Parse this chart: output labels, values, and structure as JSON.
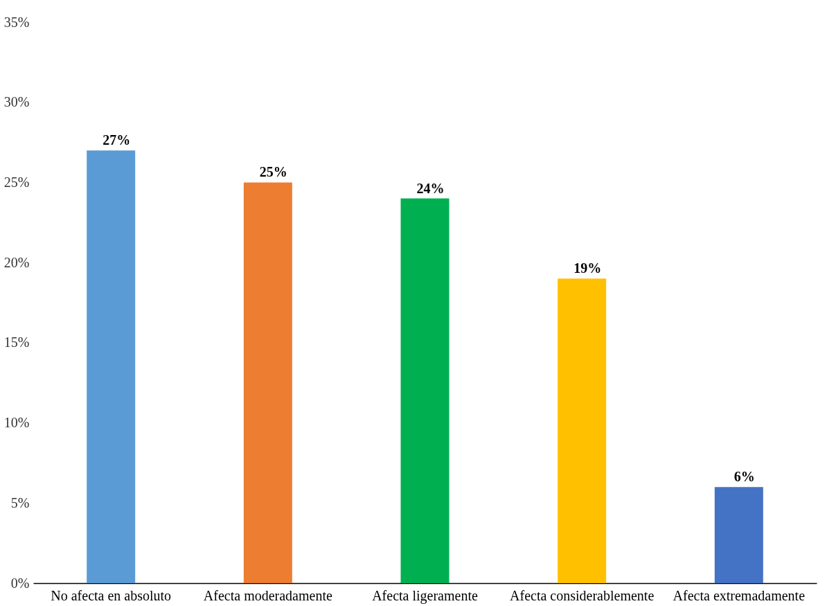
{
  "chart_data": {
    "type": "bar",
    "categories": [
      "No afecta en absoluto",
      "Afecta moderadamente",
      "Afecta ligeramente",
      "Afecta considerablemente",
      "Afecta extremadamente"
    ],
    "values": [
      27,
      25,
      24,
      19,
      6
    ],
    "colors": [
      "#5b9bd5",
      "#ed7d31",
      "#00b050",
      "#ffc000",
      "#4472c4"
    ],
    "data_labels": true,
    "value_labels": [
      "27%",
      "25%",
      "24%",
      "19%",
      "6%"
    ],
    "ylim": [
      0,
      35
    ],
    "yticks": [
      {
        "value": 0,
        "label": "0%"
      },
      {
        "value": 5,
        "label": "5%"
      },
      {
        "value": 10,
        "label": "10%"
      },
      {
        "value": 15,
        "label": "15%"
      },
      {
        "value": 20,
        "label": "20%"
      },
      {
        "value": 25,
        "label": "25%"
      },
      {
        "value": 30,
        "label": "30%"
      },
      {
        "value": 35,
        "label": "35%"
      }
    ],
    "grid": false
  }
}
